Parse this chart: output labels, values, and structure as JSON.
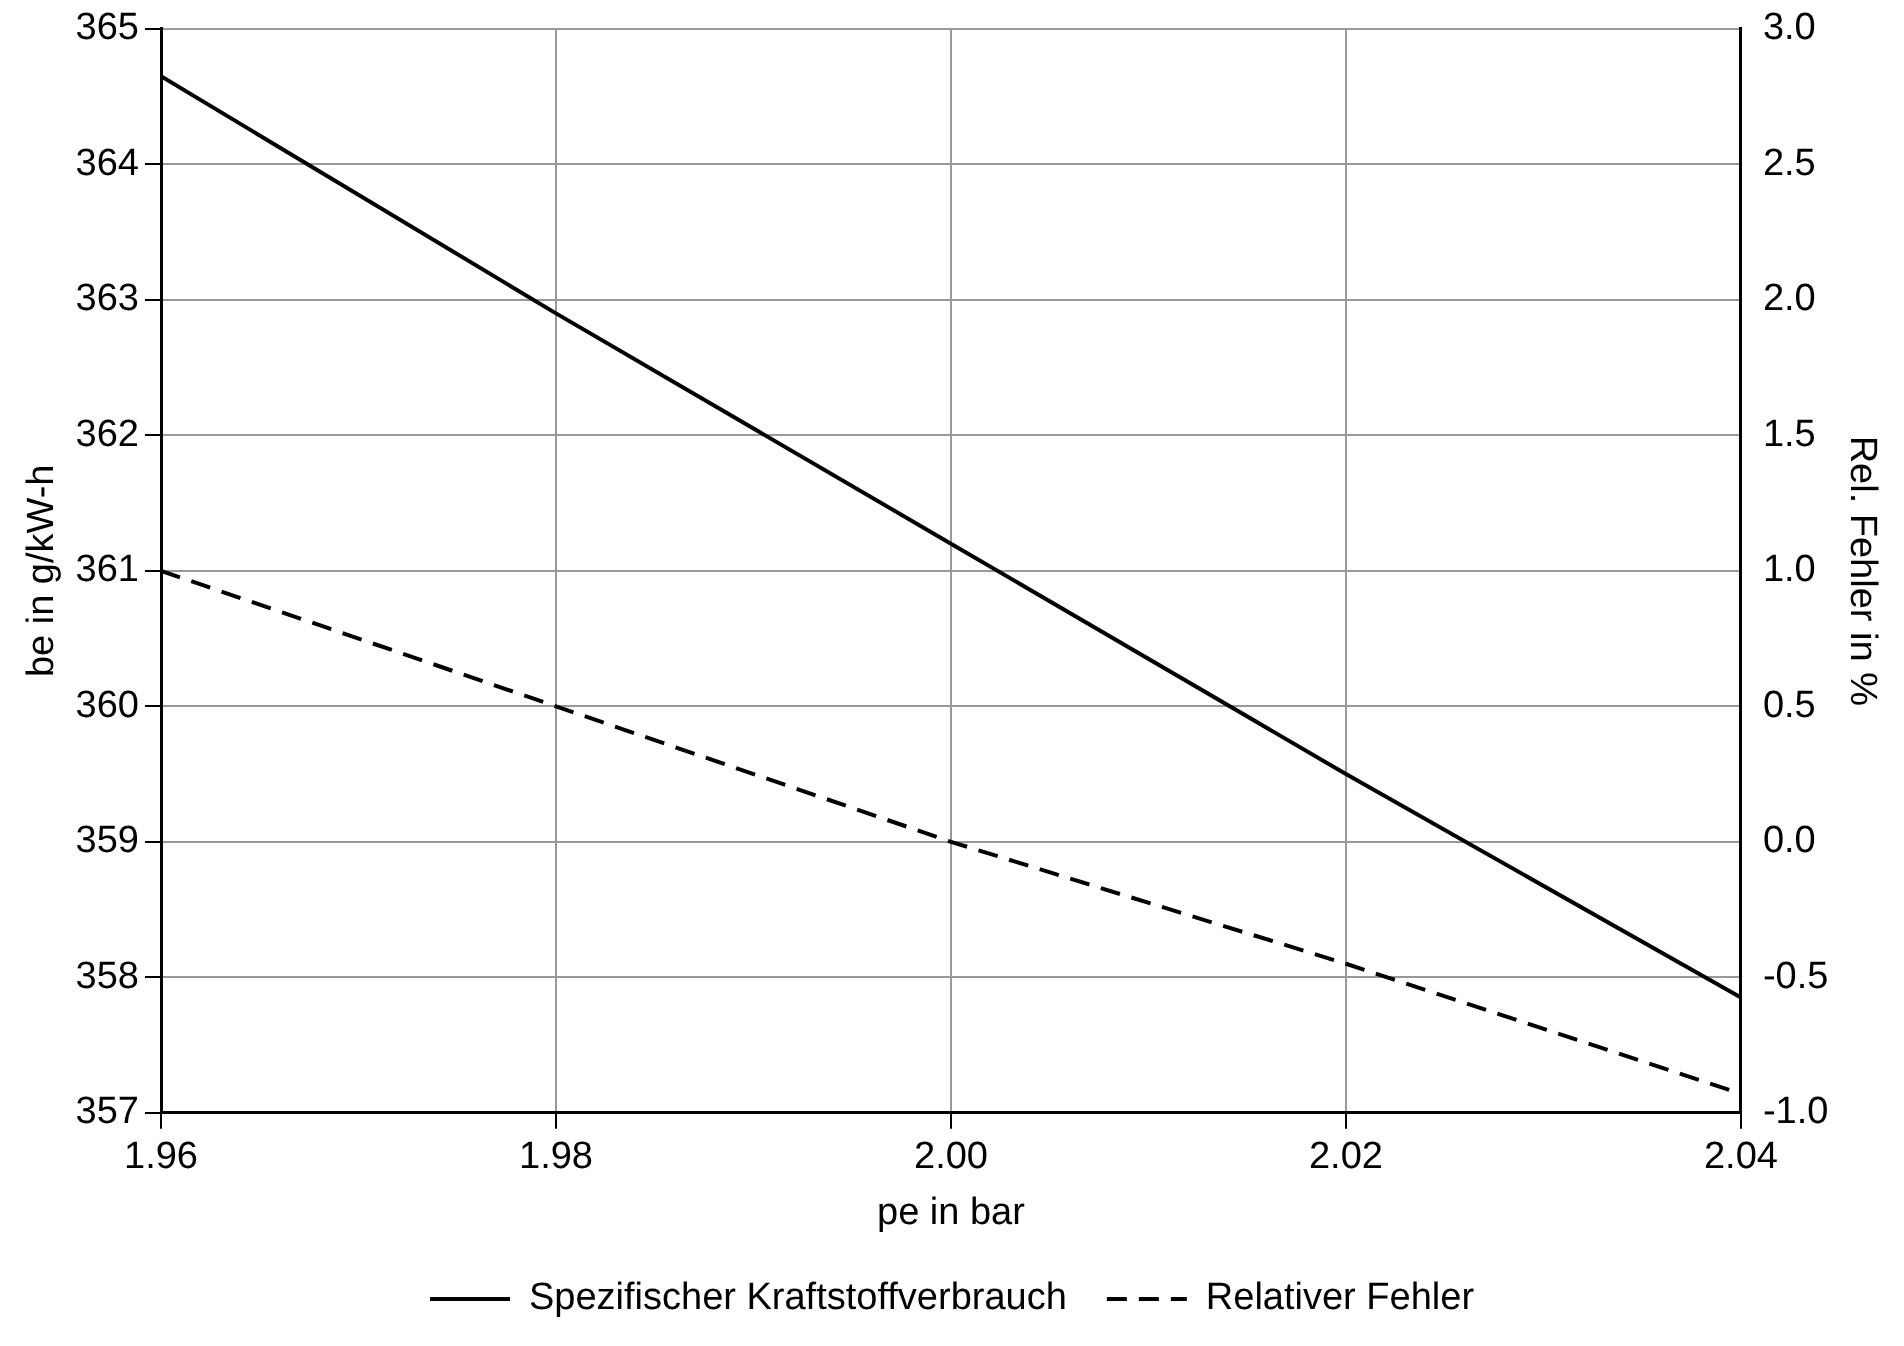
{
  "chart_data": {
    "type": "line",
    "xlabel": "pe in bar",
    "ylabel": "be in g/kW-h",
    "y2label": "Rel. Fehler in %",
    "x": [
      1.96,
      1.98,
      2.0,
      2.02,
      2.04
    ],
    "series": [
      {
        "name": "Spezifischer Kraftstoffverbrauch",
        "color": "#000000",
        "values": [
          364.65,
          362.9,
          361.2,
          359.5,
          357.85
        ],
        "line_style": "solid"
      },
      {
        "name": "Relativer Fehler",
        "color": "#000000",
        "values": [
          1.0,
          0.5,
          0.0,
          -0.45,
          -0.93
        ],
        "axis": "y2",
        "line_style": "dashed"
      }
    ],
    "xlim": [
      1.96,
      2.04
    ],
    "xticks": [
      {
        "value": 1.96,
        "label": "1.96"
      },
      {
        "value": 1.98,
        "label": "1.98"
      },
      {
        "value": 2.0,
        "label": "2.00"
      },
      {
        "value": 2.02,
        "label": "2.02"
      },
      {
        "value": 2.04,
        "label": "2.04"
      }
    ],
    "ylim": [
      357,
      365
    ],
    "yticks": [
      357,
      358,
      359,
      360,
      361,
      362,
      363,
      364,
      365
    ],
    "y2lim": [
      -1,
      3
    ],
    "y2ticks": [
      {
        "value": -1,
        "label": "-1.0"
      },
      {
        "value": -0.5,
        "label": "-0.5"
      },
      {
        "value": 0,
        "label": "0.0"
      },
      {
        "value": 0.5,
        "label": "0.5"
      },
      {
        "value": 1,
        "label": "1.0"
      },
      {
        "value": 1.5,
        "label": "1.5"
      },
      {
        "value": 2,
        "label": "2.0"
      },
      {
        "value": 2.5,
        "label": "2.5"
      },
      {
        "value": 3,
        "label": "3.0"
      }
    ],
    "grid": true,
    "legend": "bottom",
    "marker": "none"
  }
}
